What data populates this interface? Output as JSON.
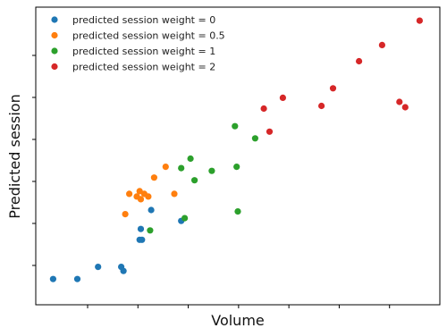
{
  "chart_data": {
    "type": "scatter",
    "title": "",
    "xlabel": "Volume",
    "ylabel": "Predicted session",
    "xlim": [
      0,
      7
    ],
    "ylim": [
      -0.5,
      10.5
    ],
    "x_tick_count": 7,
    "y_tick_count": 6,
    "tick_labels_visible": false,
    "grid": false,
    "legend_position": "top-left",
    "series": [
      {
        "name": "predicted session weight = 0",
        "color": "#1f77b4",
        "points": [
          [
            0.3,
            0.45
          ],
          [
            0.72,
            0.45
          ],
          [
            1.08,
            0.9
          ],
          [
            1.48,
            0.9
          ],
          [
            1.52,
            0.75
          ],
          [
            1.8,
            1.9
          ],
          [
            1.82,
            2.3
          ],
          [
            1.84,
            1.9
          ],
          [
            2.0,
            3.0
          ],
          [
            2.52,
            2.6
          ]
        ]
      },
      {
        "name": "predicted session weight = 0.5",
        "color": "#ff7f0e",
        "points": [
          [
            1.55,
            2.85
          ],
          [
            1.62,
            3.6
          ],
          [
            1.75,
            3.5
          ],
          [
            1.8,
            3.7
          ],
          [
            1.82,
            3.4
          ],
          [
            1.88,
            3.6
          ],
          [
            1.95,
            3.5
          ],
          [
            2.05,
            4.2
          ],
          [
            2.25,
            4.6
          ],
          [
            2.4,
            3.6
          ]
        ]
      },
      {
        "name": "predicted session weight = 1",
        "color": "#2ca02c",
        "points": [
          [
            1.98,
            2.25
          ],
          [
            2.52,
            4.55
          ],
          [
            2.58,
            2.7
          ],
          [
            2.68,
            4.9
          ],
          [
            2.75,
            4.1
          ],
          [
            3.05,
            4.45
          ],
          [
            3.45,
            6.1
          ],
          [
            3.48,
            4.6
          ],
          [
            3.5,
            2.95
          ],
          [
            3.8,
            5.65
          ]
        ]
      },
      {
        "name": "predicted session weight = 2",
        "color": "#d62728",
        "points": [
          [
            3.95,
            6.75
          ],
          [
            4.05,
            5.9
          ],
          [
            4.28,
            7.15
          ],
          [
            4.95,
            6.85
          ],
          [
            5.15,
            7.5
          ],
          [
            5.6,
            8.5
          ],
          [
            6.0,
            9.1
          ],
          [
            6.3,
            7.0
          ],
          [
            6.4,
            6.8
          ],
          [
            6.65,
            10.0
          ]
        ]
      }
    ]
  }
}
